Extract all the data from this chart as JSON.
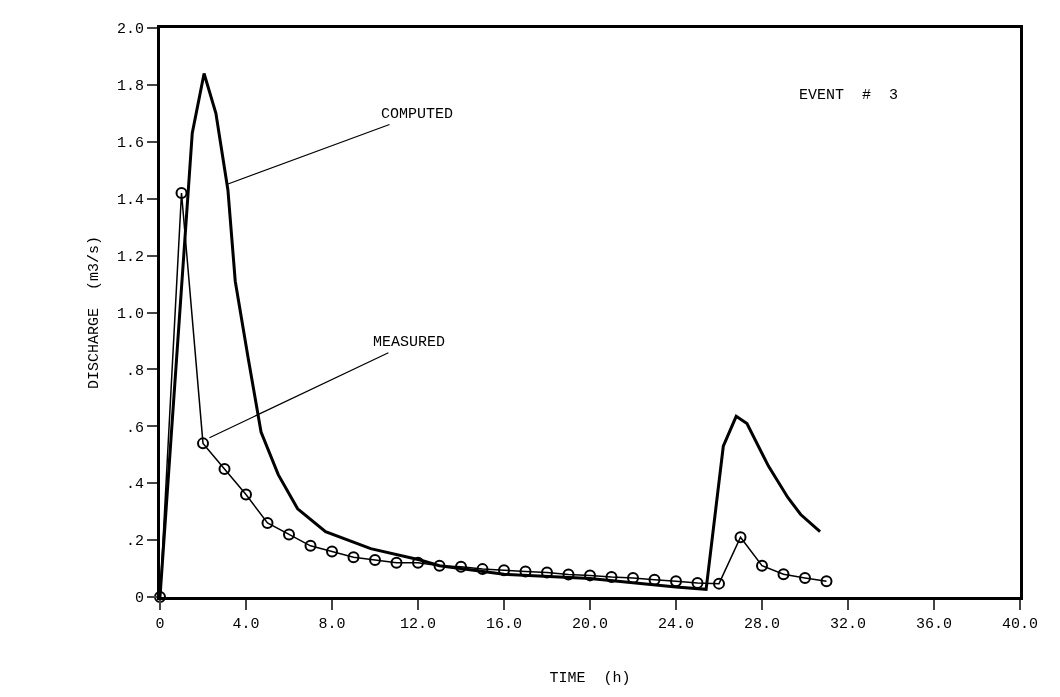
{
  "chart_data": {
    "type": "line",
    "xlabel": "TIME  (h)",
    "ylabel": "DISCHARGE  (m3/s)",
    "xlim": [
      0,
      40
    ],
    "xticks": [
      {
        "value": 0,
        "label": "0"
      },
      {
        "value": 4,
        "label": "4.0"
      },
      {
        "value": 8,
        "label": "8.0"
      },
      {
        "value": 12,
        "label": "12.0"
      },
      {
        "value": 16,
        "label": "16.0"
      },
      {
        "value": 20,
        "label": "20.0"
      },
      {
        "value": 24,
        "label": "24.0"
      },
      {
        "value": 28,
        "label": "28.0"
      },
      {
        "value": 32,
        "label": "32.0"
      },
      {
        "value": 36,
        "label": "36.0"
      },
      {
        "value": 40,
        "label": "40.0"
      }
    ],
    "ylim": [
      0,
      2
    ],
    "yticks": [
      {
        "value": 0,
        "label": "0"
      },
      {
        "value": 0.2,
        "label": ".2"
      },
      {
        "value": 0.4,
        "label": ".4"
      },
      {
        "value": 0.6,
        "label": ".6"
      },
      {
        "value": 0.8,
        "label": ".8"
      },
      {
        "value": 1,
        "label": "1.0"
      },
      {
        "value": 1.2,
        "label": "1.2"
      },
      {
        "value": 1.4,
        "label": "1.4"
      },
      {
        "value": 1.6,
        "label": "1.6"
      },
      {
        "value": 1.8,
        "label": "1.8"
      },
      {
        "value": 2,
        "label": "2.0"
      }
    ],
    "grid": false,
    "line_style": "solid",
    "series": [
      {
        "color": "#000000",
        "marker": "none",
        "x": [
          0,
          1.5,
          2.05,
          2.6,
          3.16,
          3.5,
          4.1,
          4.7,
          5.5,
          6.4,
          7.7,
          9.8,
          12.1,
          13,
          16,
          20,
          24,
          25.4,
          26.2,
          26.8,
          27.3,
          28.3,
          29.2,
          29.8,
          30.7
        ],
        "values": [
          0,
          1.63,
          1.84,
          1.7,
          1.43,
          1.11,
          0.84,
          0.58,
          0.43,
          0.31,
          0.23,
          0.17,
          0.13,
          0.11,
          0.08,
          0.065,
          0.035,
          0.027,
          0.53,
          0.635,
          0.61,
          0.46,
          0.35,
          0.29,
          0.23
        ]
      },
      {
        "color": "#000000",
        "marker": "circle",
        "x": [
          0,
          1,
          2,
          3,
          4,
          5,
          6,
          7,
          8,
          9,
          10,
          11,
          12,
          13,
          14,
          15,
          16,
          17,
          18,
          19,
          20,
          21,
          22,
          23,
          24,
          25,
          26,
          27,
          28,
          29,
          30,
          31
        ],
        "values": [
          0,
          1.42,
          0.54,
          0.45,
          0.36,
          0.26,
          0.22,
          0.18,
          0.16,
          0.14,
          0.13,
          0.12,
          0.12,
          0.11,
          0.106,
          0.098,
          0.094,
          0.09,
          0.086,
          0.079,
          0.076,
          0.07,
          0.067,
          0.061,
          0.055,
          0.049,
          0.047,
          0.21,
          0.11,
          0.08,
          0.067,
          0.055
        ]
      }
    ],
    "annotations": [
      {
        "text": "COMPUTED",
        "x": 3.1,
        "y": 1.45
      },
      {
        "text": "MEASURED",
        "x": 2.3,
        "y": 0.56
      },
      "EVENT  #  3"
    ]
  }
}
